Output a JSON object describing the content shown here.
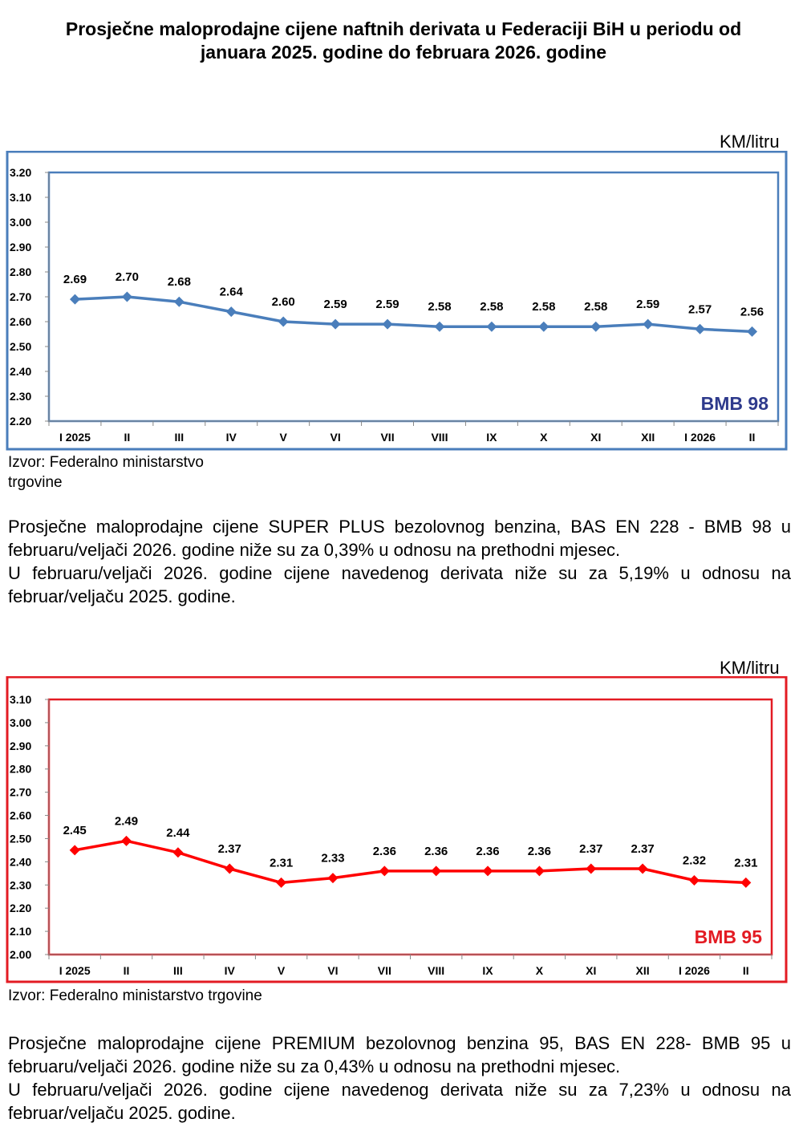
{
  "title": {
    "line1": "Prosječne maloprodajne cijene naftnih derivata u Federaciji BiH u periodu od",
    "line2": "januara 2025. godine do februara 2026. godine"
  },
  "chart_data": [
    {
      "type": "line",
      "unit_label": "KM/litru",
      "series_name": "BMB 98",
      "categories": [
        "I 2025",
        "II",
        "III",
        "IV",
        "V",
        "VI",
        "VII",
        "VIII",
        "IX",
        "X",
        "XI",
        "XII",
        "I 2026",
        "II"
      ],
      "values": [
        2.69,
        2.7,
        2.68,
        2.64,
        2.6,
        2.59,
        2.59,
        2.58,
        2.58,
        2.58,
        2.58,
        2.59,
        2.57,
        2.56
      ],
      "ylim": [
        2.2,
        3.2
      ],
      "yticks": [
        "2.20",
        "2.30",
        "2.40",
        "2.50",
        "2.60",
        "2.70",
        "2.80",
        "2.90",
        "3.00",
        "3.10",
        "3.20"
      ],
      "color": "#4a7ebb",
      "border_color": "#4a7ebb",
      "legend_color": "#2e3a8c"
    },
    {
      "type": "line",
      "unit_label": "KM/litru",
      "series_name": "BMB 95",
      "categories": [
        "I 2025",
        "II",
        "III",
        "IV",
        "V",
        "VI",
        "VII",
        "VIII",
        "IX",
        "X",
        "XI",
        "XII",
        "I 2026",
        "II"
      ],
      "values": [
        2.45,
        2.49,
        2.44,
        2.37,
        2.31,
        2.33,
        2.36,
        2.36,
        2.36,
        2.36,
        2.37,
        2.37,
        2.32,
        2.31
      ],
      "ylim": [
        2.0,
        3.1
      ],
      "yticks": [
        "2.00",
        "2.10",
        "2.20",
        "2.30",
        "2.40",
        "2.50",
        "2.60",
        "2.70",
        "2.80",
        "2.90",
        "3.00",
        "3.10"
      ],
      "color": "#ff0000",
      "border_color": "#e31b23",
      "legend_color": "#e31b23"
    }
  ],
  "sources": {
    "first_line1": "Izvor: Federalno ministarstvo",
    "first_line2": "trgovine",
    "second": "Izvor: Federalno ministarstvo trgovine"
  },
  "paragraphs": {
    "p1a": "Prosječne maloprodajne cijene SUPER PLUS bezolovnog benzina, BAS EN 228 - BMB 98 u februaru/veljači 2026. godine niže su za 0,39% u odnosu na prethodni mjesec.",
    "p1b": "U februaru/veljači 2026. godine cijene navedenog derivata niže su za 5,19% u odnosu na februar/veljaču 2025. godine.",
    "p2a": "Prosječne maloprodajne cijene PREMIUM bezolovnog benzina 95, BAS EN 228- BMB 95 u februaru/veljači 2026. godine niže su za 0,43% u odnosu na prethodni mjesec.",
    "p2b": "U februaru/veljači 2026. godine cijene navedenog derivata niže su za 7,23% u odnosu na februar/veljaču 2025. godine."
  }
}
